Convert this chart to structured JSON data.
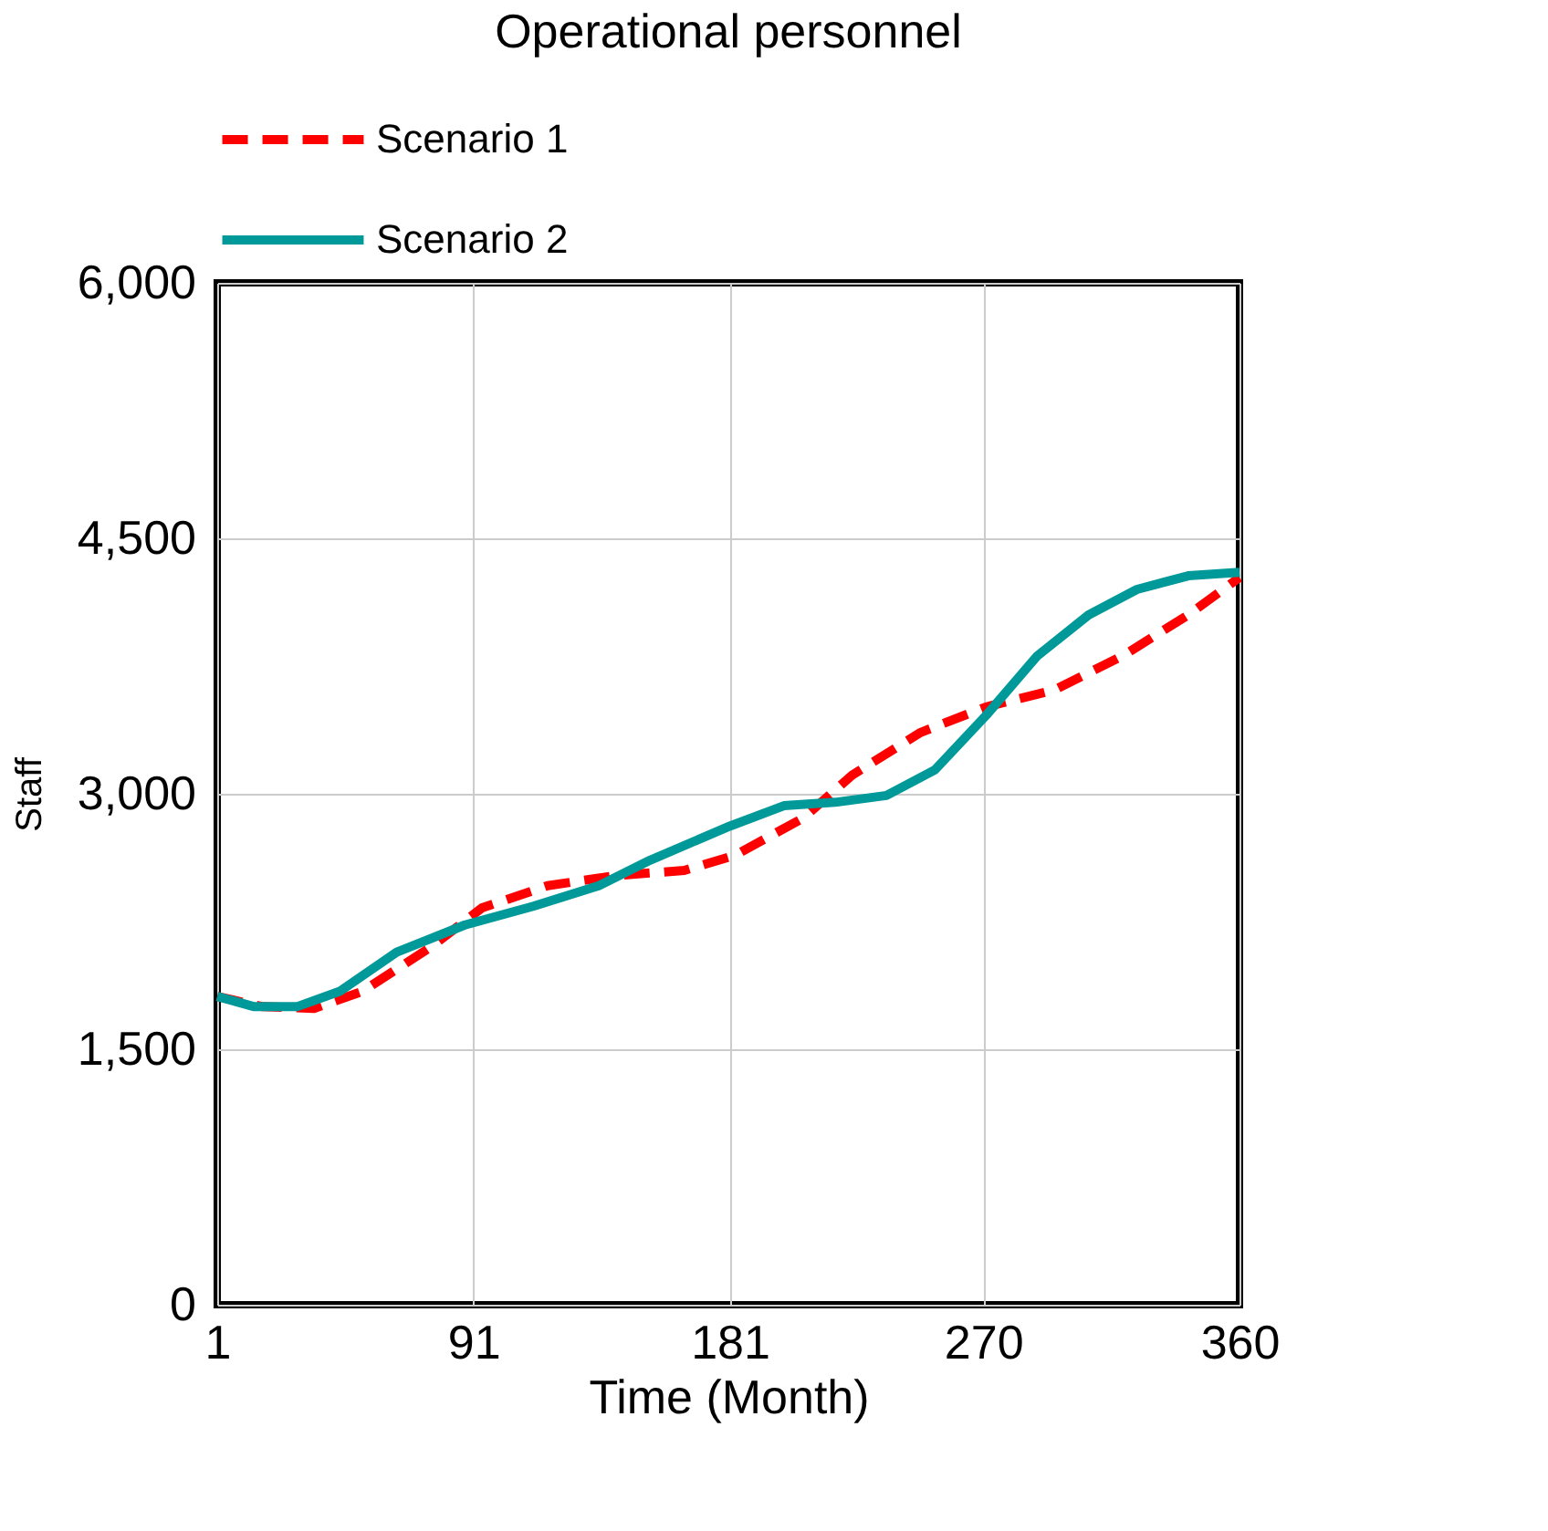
{
  "chart_data": {
    "type": "line",
    "title": "Operational personnel",
    "xlabel": "Time (Month)",
    "ylabel": "Staff",
    "xlim": [
      1,
      360
    ],
    "xticks": [
      1,
      91,
      181,
      270,
      360
    ],
    "ylim": [
      0,
      6000
    ],
    "yticks": [
      {
        "value": 0,
        "label": "0"
      },
      {
        "value": 1500,
        "label": "1,500"
      },
      {
        "value": 3000,
        "label": "3,000"
      },
      {
        "value": 4500,
        "label": "4,500"
      },
      {
        "value": 6000,
        "label": "6,000"
      }
    ],
    "grid": true,
    "legend": "top",
    "marker": "none",
    "series": [
      {
        "name": "Scenario 1",
        "color": "#ff0000",
        "line_style": "dashed",
        "x": [
          1,
          17,
          35,
          52,
          76,
          94,
          117,
          141,
          165,
          183,
          207,
          224,
          248,
          271,
          295,
          319,
          342,
          360
        ],
        "values": [
          1810,
          1750,
          1740,
          1840,
          2100,
          2330,
          2460,
          2520,
          2550,
          2640,
          2860,
          3110,
          3360,
          3510,
          3610,
          3810,
          4050,
          4270
        ]
      },
      {
        "name": "Scenario 2",
        "color": "#009999",
        "line_style": "solid",
        "x": [
          1,
          14,
          29,
          44,
          64,
          88,
          112,
          135,
          153,
          181,
          200,
          218,
          236,
          253,
          271,
          289,
          307,
          324,
          342,
          360
        ],
        "values": [
          1810,
          1750,
          1750,
          1840,
          2070,
          2230,
          2340,
          2460,
          2610,
          2810,
          2930,
          2950,
          2990,
          3140,
          3460,
          3810,
          4050,
          4200,
          4280,
          4300
        ]
      }
    ]
  }
}
